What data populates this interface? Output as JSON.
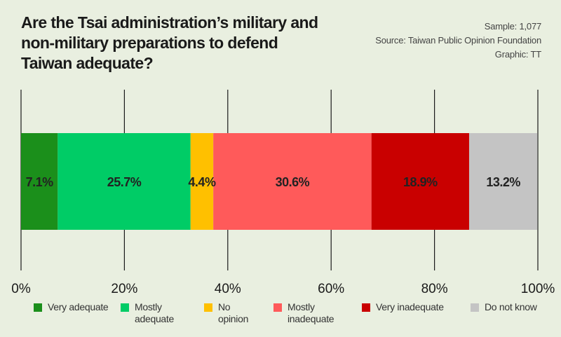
{
  "title": "Are the Tsai administration’s military and non-military preparations to defend Taiwan adequate?",
  "meta": {
    "sample": "Sample: 1,077",
    "source": "Source: Taiwan Public Opinion Foundation",
    "graphic": "Graphic: TT"
  },
  "chart_data": {
    "type": "bar",
    "orientation": "horizontal-stacked",
    "categories": [
      "Very adequate",
      "Mostly adequate",
      "No opinion",
      "Mostly inadequate",
      "Very inadequate",
      "Do not know"
    ],
    "values": [
      7.1,
      25.7,
      4.4,
      30.6,
      18.9,
      13.2
    ],
    "labels": [
      "7.1%",
      "25.7%",
      "4.4%",
      "30.6%",
      "18.9%",
      "13.2%"
    ],
    "colors": [
      "#1b8f1b",
      "#00cc66",
      "#ffc000",
      "#ff5a5a",
      "#c90000",
      "#c4c4c4"
    ],
    "xlim": [
      0,
      100
    ],
    "xticks": [
      0,
      20,
      40,
      60,
      80,
      100
    ],
    "xtick_labels": [
      "0%",
      "20%",
      "40%",
      "60%",
      "80%",
      "100%"
    ],
    "grid": true,
    "legend_placement": "bottom"
  },
  "legend": [
    {
      "line1": "Very adequate",
      "line2": ""
    },
    {
      "line1": "Mostly",
      "line2": "adequate"
    },
    {
      "line1": "No",
      "line2": "opinion"
    },
    {
      "line1": "Mostly",
      "line2": "inadequate"
    },
    {
      "line1": "Very inadequate",
      "line2": ""
    },
    {
      "line1": "Do not know",
      "line2": ""
    }
  ]
}
